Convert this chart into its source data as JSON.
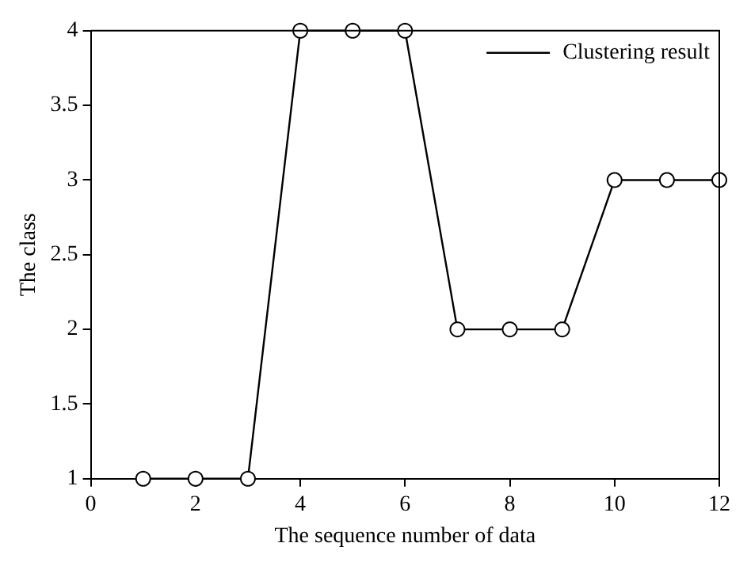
{
  "chart_data": {
    "type": "line",
    "xlabel": "The sequence number of data",
    "ylabel": "The class",
    "x": [
      1,
      2,
      3,
      4,
      5,
      6,
      7,
      8,
      9,
      10,
      11,
      12
    ],
    "series": [
      {
        "name": "Clustering result",
        "color": "#000000",
        "values": [
          1,
          1,
          1,
          4,
          4,
          4,
          2,
          2,
          2,
          3,
          3,
          3
        ]
      }
    ],
    "xlim": [
      0,
      12
    ],
    "xticks": [
      0,
      2,
      4,
      6,
      8,
      10,
      12
    ],
    "ylim": [
      1,
      4
    ],
    "yticks": [
      1,
      1.5,
      2,
      2.5,
      3,
      3.5,
      4
    ],
    "grid": false,
    "legend": "top right",
    "marker": "circle",
    "line_style": "solid"
  }
}
